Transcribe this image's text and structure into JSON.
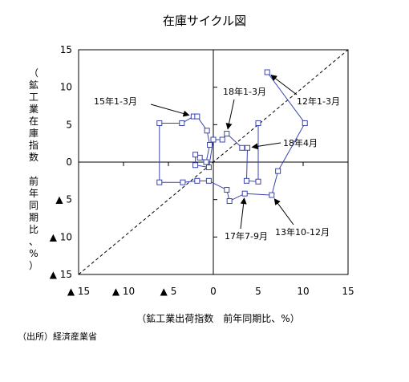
{
  "chart_data": {
    "type": "scatter",
    "title": "在庫サイクル図",
    "xlabel": "（鉱工業出荷指数　前年同期比、%）",
    "ylabel": "（鉱工業在庫指数　前年同期比、%）",
    "xlim": [
      -15,
      15
    ],
    "ylim": [
      -15,
      15
    ],
    "x_ticks": [
      "▲ 15",
      "▲ 10",
      "▲ 5",
      "0",
      "5",
      "10",
      "15"
    ],
    "y_ticks": [
      "15",
      "10",
      "5",
      "0",
      "▲ 5",
      "▲ 10",
      "▲ 15"
    ],
    "grid": false,
    "series": [
      {
        "connected": true,
        "color": "#3a44b0",
        "points": [
          [
            6.0,
            12.0
          ],
          [
            10.2,
            5.2
          ],
          [
            7.2,
            -1.2
          ],
          [
            6.5,
            -4.4
          ],
          [
            3.5,
            -4.2
          ],
          [
            1.8,
            -5.2
          ],
          [
            1.5,
            -3.7
          ],
          [
            -0.5,
            -2.5
          ],
          [
            -1.8,
            -2.5
          ],
          [
            -3.4,
            -2.7
          ],
          [
            -6.0,
            -2.7
          ],
          [
            -6.0,
            5.2
          ],
          [
            -3.5,
            5.2
          ],
          [
            -2.2,
            6.1
          ],
          [
            -1.8,
            6.1
          ],
          [
            -0.7,
            4.2
          ],
          [
            -0.4,
            2.3
          ],
          [
            -0.8,
            0.0
          ],
          [
            -1.5,
            0.6
          ],
          [
            -2.0,
            1.0
          ],
          [
            -2.0,
            -0.4
          ],
          [
            -0.5,
            -0.7
          ],
          [
            0.0,
            3.0
          ],
          [
            1.0,
            3.0
          ],
          [
            1.5,
            3.8
          ],
          [
            3.2,
            1.9
          ],
          [
            3.8,
            1.9
          ],
          [
            3.7,
            -2.5
          ],
          [
            5.0,
            -2.6
          ],
          [
            5.0,
            5.2
          ]
        ]
      },
      {
        "name": "",
        "connected": true,
        "dashed": true,
        "color": "#000000",
        "points": [
          [
            -15,
            -15
          ],
          [
            15,
            15
          ]
        ]
      }
    ],
    "annotations": [
      {
        "text": "12年1-3月",
        "point": [
          6.0,
          12.0
        ]
      },
      {
        "text": "15年1-3月",
        "point": [
          -2.2,
          6.1
        ]
      },
      {
        "text": "18年1-3月",
        "point": [
          1.5,
          3.8
        ]
      },
      {
        "text": "18年4月",
        "point": [
          3.8,
          1.9
        ]
      },
      {
        "text": "13年10-12月",
        "point": [
          6.5,
          -4.4
        ]
      },
      {
        "text": "17年7-9月",
        "point": [
          3.5,
          -4.2
        ]
      }
    ]
  },
  "source": "（出所）経済産業省"
}
